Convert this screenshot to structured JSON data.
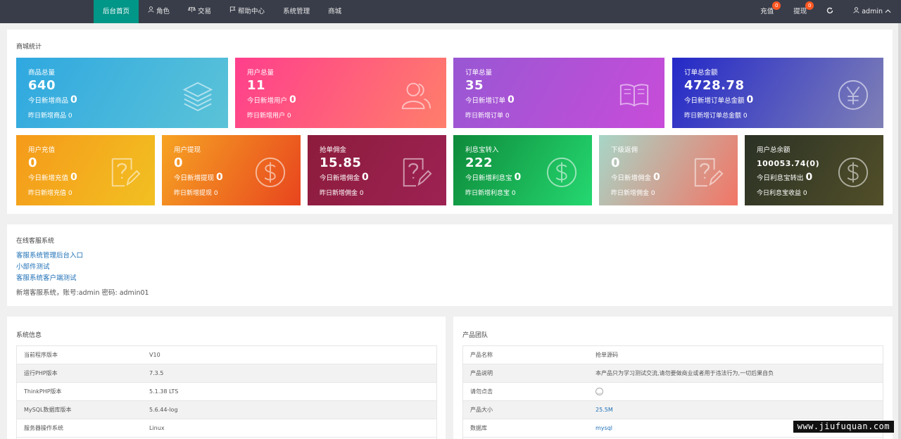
{
  "nav": {
    "items": [
      {
        "label": "后台首页",
        "icon": ""
      },
      {
        "label": "角色",
        "icon": "user-icon"
      },
      {
        "label": "交易",
        "icon": "scale-icon"
      },
      {
        "label": "帮助中心",
        "icon": "flag-icon"
      },
      {
        "label": "系统管理",
        "icon": ""
      },
      {
        "label": "商城",
        "icon": ""
      }
    ],
    "recharge_label": "充值",
    "recharge_badge": "0",
    "withdraw_label": "提现",
    "withdraw_badge": "0",
    "refresh_icon": "refresh-icon",
    "user_label": "admin",
    "colors": {
      "bar": "#393d49",
      "active": "#009688",
      "badge": "#ff5722"
    }
  },
  "stats": {
    "title": "商城统计",
    "row1": [
      {
        "title": "商品总量",
        "value": "640",
        "today_label": "今日新增商品",
        "today_value": "0",
        "yest_label": "昨日新增商品",
        "yest_value": "0",
        "icon": "layers-icon",
        "gradient": [
          "#2fa8e0",
          "#5bc3d8"
        ]
      },
      {
        "title": "用户总量",
        "value": "11",
        "today_label": "今日新增用户",
        "today_value": "0",
        "yest_label": "昨日新增用户",
        "yest_value": "0",
        "icon": "users-icon",
        "gradient": [
          "#ff4b8a",
          "#ff7a6e"
        ]
      },
      {
        "title": "订单总量",
        "value": "35",
        "today_label": "今日新增订单",
        "today_value": "0",
        "yest_label": "昨日新增订单",
        "yest_value": "0",
        "icon": "book-icon",
        "gradient": [
          "#9b59d4",
          "#c44dd8"
        ]
      },
      {
        "title": "订单总金额",
        "value": "4728.78",
        "today_label": "今日新增订单总金额",
        "today_value": "0",
        "yest_label": "昨日新增订单总金额",
        "yest_value": "0",
        "icon": "yen-icon",
        "gradient": [
          "#2c31c9",
          "#7d7fb8"
        ]
      }
    ],
    "row2": [
      {
        "title": "用户充值",
        "value": "0",
        "today_label": "今日新增充值",
        "today_value": "0",
        "yest_label": "昨日新增充值",
        "yest_value": "0",
        "icon": "question-doc-icon",
        "gradient": [
          "#f59b1a",
          "#f3bb22"
        ]
      },
      {
        "title": "用户提现",
        "value": "0",
        "today_label": "今日新增提现",
        "today_value": "0",
        "yest_label": "昨日新增提现",
        "yest_value": "0",
        "icon": "dollar-icon",
        "gradient": [
          "#f6a021",
          "#e9471f"
        ]
      },
      {
        "title": "抢单佣金",
        "value": "15.85",
        "today_label": "今日新增佣金",
        "today_value": "0",
        "yest_label": "昨日新增佣金",
        "yest_value": "0",
        "icon": "question-doc-icon",
        "gradient": [
          "#8c1d3d",
          "#9c2151"
        ]
      },
      {
        "title": "利息宝转入",
        "value": "222",
        "today_label": "今日新增利息宝",
        "today_value": "0",
        "yest_label": "昨日新增利息宝",
        "yest_value": "0",
        "icon": "dollar-icon",
        "gradient": [
          "#0f8f3c",
          "#22d36c"
        ]
      },
      {
        "title": "下级返佣",
        "value": "0",
        "today_label": "今日新增佣金",
        "today_value": "0",
        "yest_label": "昨日新增佣金",
        "yest_value": "0",
        "icon": "question-doc-icon",
        "gradient": [
          "#9ed3c5",
          "#f07a6b"
        ]
      },
      {
        "title": "用户总余额",
        "value": "100053.74(0)",
        "today_label": "今日利息宝转出",
        "today_value": "0",
        "yest_label": "今日利息宝收益",
        "yest_value": "0",
        "icon": "dollar-icon",
        "gradient": [
          "#2e3426",
          "#4f4d2a"
        ]
      }
    ]
  },
  "cs": {
    "title": "在线客服系统",
    "links": [
      "客服系统管理后台入口",
      "小部件测试",
      "客服系统客户端测试"
    ],
    "note": "新增客服系统，账号:admin 密码: admin01"
  },
  "sysinfo": {
    "title": "系统信息",
    "rows": [
      {
        "k": "当前程序版本",
        "v": "V10"
      },
      {
        "k": "运行PHP版本",
        "v": "7.3.5"
      },
      {
        "k": "ThinkPHP版本",
        "v": "5.1.38 LTS"
      },
      {
        "k": "MySQL数据库版本",
        "v": "5.6.44-log"
      },
      {
        "k": "服务器操作系统",
        "v": "Linux"
      }
    ]
  },
  "team": {
    "title": "产品团队",
    "rows": [
      {
        "k": "产品名称",
        "v": "抢单源码"
      },
      {
        "k": "产品说明",
        "v": "本产品只为学习测试交流,请勿要做商业或者用于违法行为,一切后果自负"
      },
      {
        "k": "请勿点击",
        "v": ""
      },
      {
        "k": "产品大小",
        "v": "25.5M"
      },
      {
        "k": "数据库",
        "v": "mysql"
      }
    ]
  },
  "watermark": "www.jiufuquan.com"
}
